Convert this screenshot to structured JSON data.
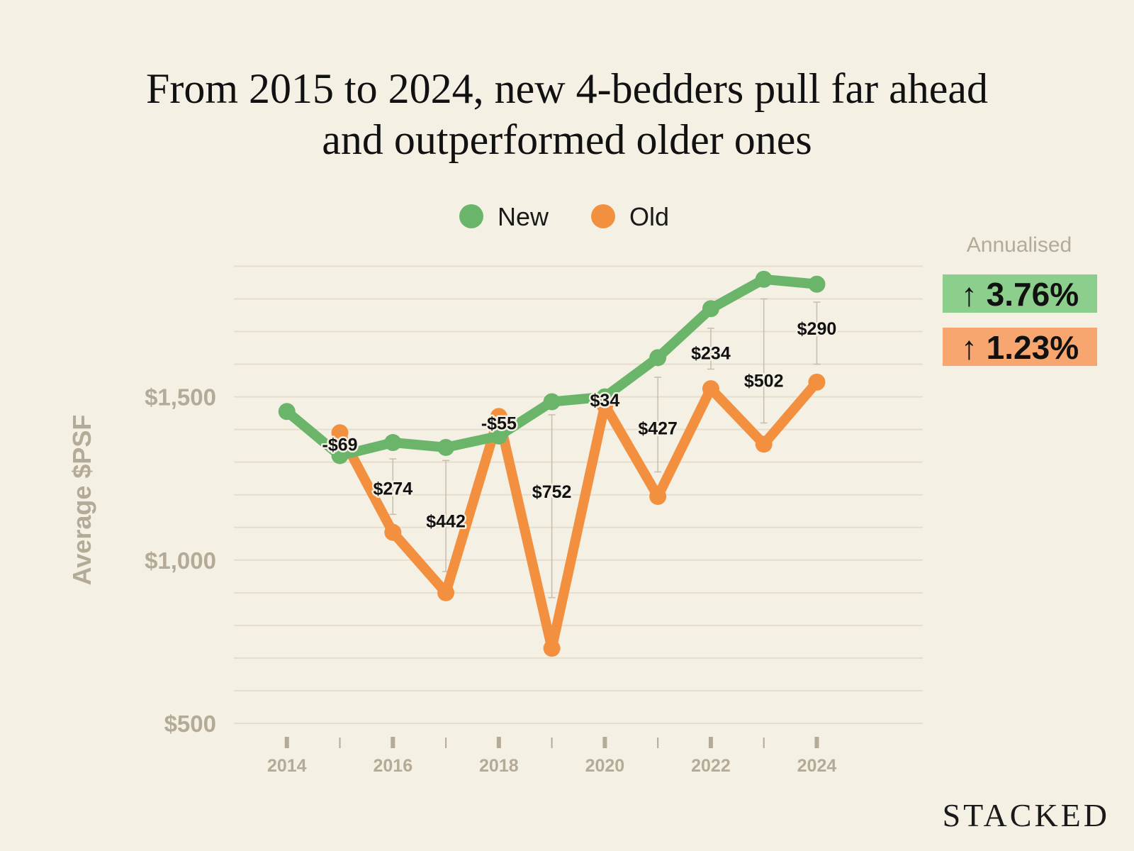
{
  "title_lines": [
    "From 2015 to 2024, new 4-bedders pull far ahead",
    "and outperformed older ones"
  ],
  "brand": "STACKED",
  "annualised": {
    "label": "Annualised",
    "new": {
      "text": "↑ 3.76%",
      "color": "#8ccf8c"
    },
    "old": {
      "text": "↑ 1.23%",
      "color": "#f7a66f"
    }
  },
  "colors": {
    "new": "#6ab56a",
    "old": "#f39040",
    "grid": "#e6ddcc",
    "muted": "#b4aa98"
  },
  "chart_data": {
    "type": "line",
    "ylabel": "Average $PSF",
    "xlabel": "",
    "ylim": [
      500,
      1940
    ],
    "yticks": [
      {
        "v": 500,
        "label": "$500"
      },
      {
        "v": 1000,
        "label": "$1,000"
      },
      {
        "v": 1500,
        "label": "$1,500"
      }
    ],
    "grid_step": 100,
    "xlim": [
      2013,
      2026
    ],
    "xticks_labeled": [
      2014,
      2016,
      2018,
      2020,
      2022,
      2024
    ],
    "xticks_minor": [
      2015,
      2017,
      2019,
      2021,
      2023
    ],
    "legend": {
      "position": "top-center",
      "items": [
        {
          "name": "New",
          "color": "#6ab56a"
        },
        {
          "name": "Old",
          "color": "#f39040"
        }
      ]
    },
    "series": [
      {
        "name": "New",
        "color": "#6ab56a",
        "points": [
          [
            2014,
            1455
          ],
          [
            2015,
            1320
          ],
          [
            2016,
            1360
          ],
          [
            2017,
            1345
          ],
          [
            2018,
            1380
          ],
          [
            2019,
            1485
          ],
          [
            2020,
            1500
          ],
          [
            2021,
            1620
          ],
          [
            2022,
            1770
          ],
          [
            2023,
            1860
          ],
          [
            2024,
            1845
          ]
        ]
      },
      {
        "name": "Old",
        "color": "#f39040",
        "points": [
          [
            2015,
            1390
          ],
          [
            2016,
            1085
          ],
          [
            2017,
            900
          ],
          [
            2018,
            1440
          ],
          [
            2019,
            730
          ],
          [
            2020,
            1475
          ],
          [
            2021,
            1195
          ],
          [
            2022,
            1525
          ],
          [
            2023,
            1355
          ],
          [
            2024,
            1545
          ]
        ]
      }
    ],
    "annotations": [
      {
        "x": 2015,
        "label": "-$69",
        "y": 1355,
        "bar": [
          1320,
          1390
        ]
      },
      {
        "x": 2016,
        "label": "$274",
        "y": 1220,
        "bar": [
          1140,
          1310
        ]
      },
      {
        "x": 2017,
        "label": "$442",
        "y": 1120,
        "bar": [
          965,
          1305
        ]
      },
      {
        "x": 2018,
        "label": "-$55",
        "y": 1420,
        "bar": [
          1380,
          1440
        ]
      },
      {
        "x": 2019,
        "label": "$752",
        "y": 1210,
        "bar": [
          885,
          1445
        ]
      },
      {
        "x": 2020,
        "label": "$34",
        "y": 1490,
        "bar": [
          1475,
          1500
        ]
      },
      {
        "x": 2021,
        "label": "$427",
        "y": 1405,
        "bar": [
          1270,
          1560
        ]
      },
      {
        "x": 2022,
        "label": "$234",
        "y": 1635,
        "bar": [
          1585,
          1710
        ]
      },
      {
        "x": 2023,
        "label": "$502",
        "y": 1550,
        "bar": [
          1420,
          1800
        ]
      },
      {
        "x": 2024,
        "label": "$290",
        "y": 1710,
        "bar": [
          1600,
          1790
        ]
      }
    ]
  }
}
